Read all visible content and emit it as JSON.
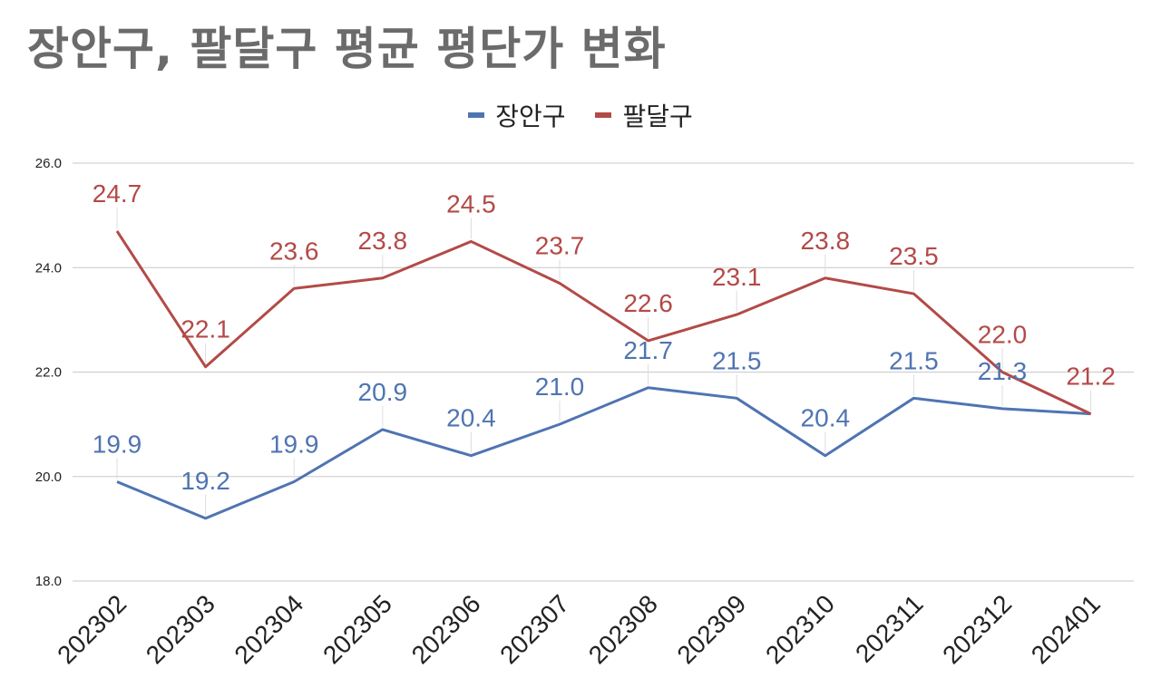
{
  "chart_data": {
    "type": "line",
    "title": "장안구, 팔달구 평균 평단가 변화",
    "categories": [
      "202302",
      "202303",
      "202304",
      "202305",
      "202306",
      "202307",
      "202308",
      "202309",
      "202310",
      "202311",
      "202312",
      "202401"
    ],
    "series": [
      {
        "name": "장안구",
        "color": "#4f74b2",
        "values": [
          19.9,
          19.2,
          19.9,
          20.9,
          20.4,
          21.0,
          21.7,
          21.5,
          20.4,
          21.5,
          21.3,
          21.2
        ],
        "labels": [
          "19.9",
          "19.2",
          "19.9",
          "20.9",
          "20.4",
          "21.0",
          "21.7",
          "21.5",
          "20.4",
          "21.5",
          "21.3",
          ""
        ]
      },
      {
        "name": "팔달구",
        "color": "#b34a47",
        "values": [
          24.7,
          22.1,
          23.6,
          23.8,
          24.5,
          23.7,
          22.6,
          23.1,
          23.8,
          23.5,
          22.0,
          21.2
        ],
        "labels": [
          "24.7",
          "22.1",
          "23.6",
          "23.8",
          "24.5",
          "23.7",
          "22.6",
          "23.1",
          "23.8",
          "23.5",
          "22.0",
          "21.2"
        ]
      }
    ],
    "ylim": [
      18.0,
      26.0
    ],
    "yticks": [
      "18.0",
      "20.0",
      "22.0",
      "24.0",
      "26.0"
    ],
    "grid": true,
    "legend": "top-center"
  }
}
